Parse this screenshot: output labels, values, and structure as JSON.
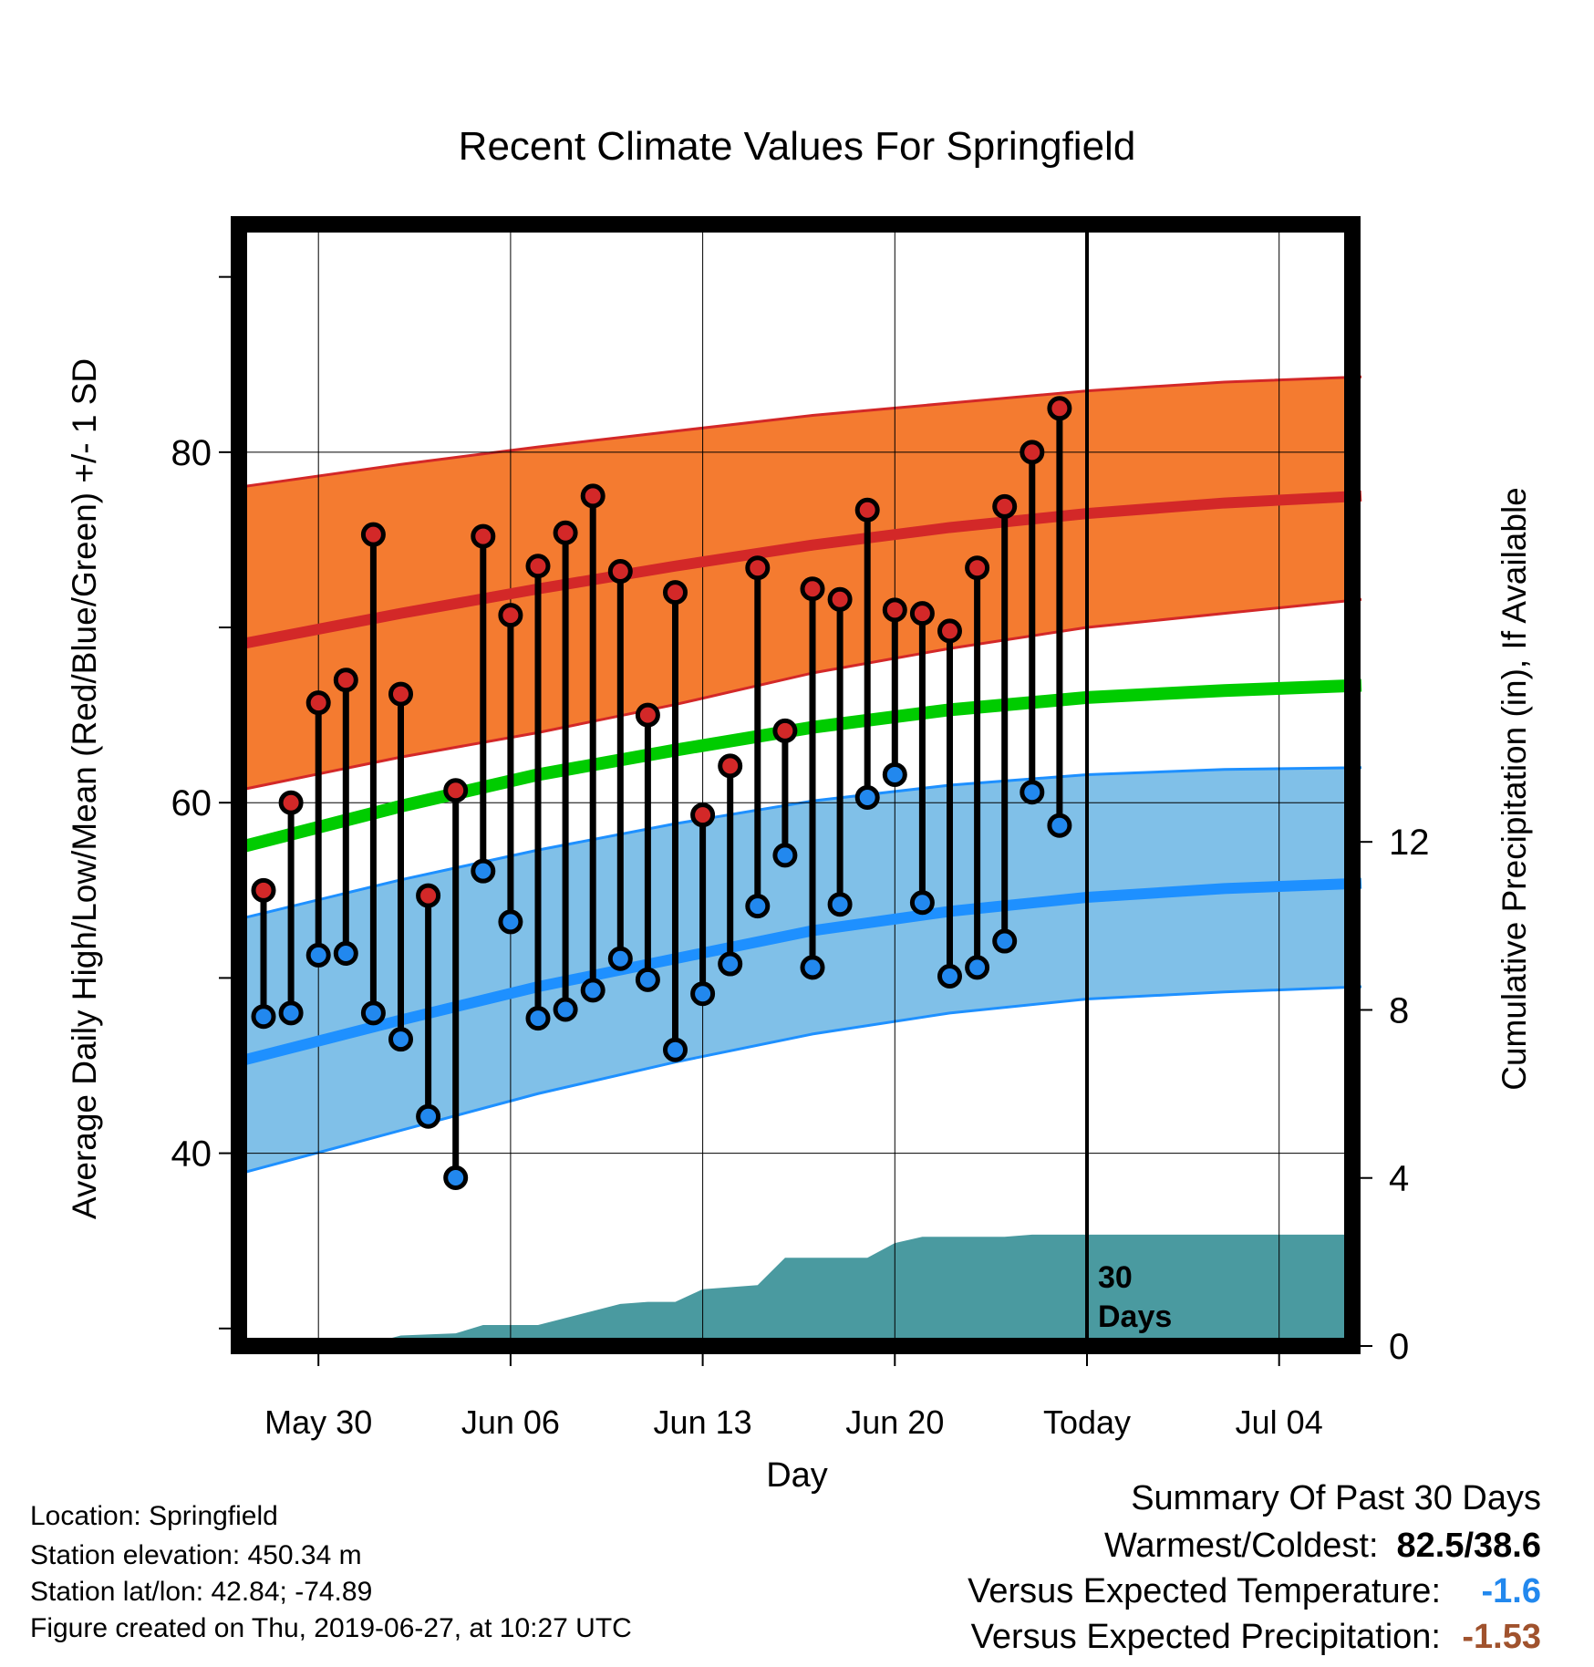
{
  "chart_data": {
    "type": "line",
    "title": "Recent Climate Values For Springfield",
    "xlabel": "Day",
    "ylabel_left": "Average Daily High/Low/Mean (Red/Blue/Green) +/- 1 SD",
    "ylabel_right": "Cumulative Precipitation (in), If Available",
    "x_ticks": [
      "May 30",
      "Jun 06",
      "Jun 13",
      "Jun 20",
      "Today",
      "Jul 04"
    ],
    "y_left_ticks": [
      "40",
      "60",
      "80"
    ],
    "y_left_range": [
      29,
      93
    ],
    "y_right_ticks": [
      "0",
      "4",
      "8",
      "12"
    ],
    "y_right_range": [
      0,
      26.7
    ],
    "today_annotation": "30 Days",
    "grid": true,
    "normals": {
      "days": [
        0,
        5,
        10,
        15,
        20,
        25,
        30,
        35,
        40
      ],
      "high_mean": [
        69.3,
        70.8,
        72.2,
        73.5,
        74.7,
        75.7,
        76.5,
        77.1,
        77.5
      ],
      "high_upper": [
        78.2,
        79.3,
        80.3,
        81.2,
        82.1,
        82.8,
        83.5,
        84.0,
        84.3
      ],
      "high_lower": [
        61.0,
        62.6,
        64.0,
        65.6,
        67.4,
        68.8,
        70.0,
        70.8,
        71.6
      ],
      "avg_mean": [
        57.8,
        59.8,
        61.6,
        63.0,
        64.3,
        65.3,
        66.0,
        66.4,
        66.7
      ],
      "low_mean": [
        45.6,
        47.6,
        49.5,
        51.1,
        52.7,
        53.8,
        54.6,
        55.1,
        55.4
      ],
      "low_upper": [
        53.7,
        55.6,
        57.3,
        58.8,
        60.1,
        61.0,
        61.6,
        61.9,
        62.0
      ],
      "low_lower": [
        39.2,
        41.3,
        43.4,
        45.2,
        46.8,
        48.0,
        48.8,
        49.2,
        49.5
      ]
    },
    "observed": {
      "days": [
        0,
        1,
        2,
        3,
        4,
        5,
        6,
        7,
        8,
        9,
        10,
        11,
        12,
        13,
        14,
        15,
        16,
        17,
        18,
        19,
        20,
        21,
        22,
        23,
        24,
        25,
        26,
        27,
        28,
        29
      ],
      "high": [
        55.0,
        60.0,
        65.7,
        67.0,
        75.3,
        66.2,
        54.7,
        60.7,
        75.2,
        70.7,
        73.5,
        75.4,
        77.5,
        73.2,
        65.0,
        72.0,
        59.3,
        62.1,
        73.4,
        64.1,
        72.2,
        71.6,
        76.7,
        71.0,
        70.8,
        69.8,
        73.4,
        76.9,
        80.0,
        82.5
      ],
      "low": [
        47.8,
        48.0,
        51.3,
        51.4,
        48.0,
        46.5,
        42.1,
        38.6,
        56.1,
        53.2,
        47.7,
        48.2,
        49.3,
        51.1,
        49.9,
        45.9,
        49.1,
        50.8,
        54.1,
        57.0,
        50.6,
        54.2,
        60.3,
        61.6,
        54.3,
        50.1,
        50.6,
        52.1,
        60.6,
        58.7
      ]
    },
    "precip_cumulative": {
      "days": [
        0,
        1,
        4,
        5,
        7,
        8,
        9,
        10,
        13,
        14,
        15,
        16,
        17,
        18,
        19,
        20,
        21,
        22,
        23,
        24,
        25,
        26,
        27,
        28,
        29,
        30,
        40
      ],
      "values": [
        0.05,
        0.08,
        0.08,
        0.25,
        0.3,
        0.5,
        0.5,
        0.5,
        1.0,
        1.05,
        1.05,
        1.35,
        1.4,
        1.45,
        2.1,
        2.1,
        2.1,
        2.1,
        2.45,
        2.6,
        2.6,
        2.6,
        2.6,
        2.65,
        2.65,
        2.65,
        2.65
      ]
    }
  },
  "info": {
    "location": "Location: Springfield",
    "elevation": "Station elevation: 450.34 m",
    "latlon": "Station lat/lon: 42.84; -74.89",
    "created": "Figure created on Thu, 2019-06-27, at 10:27 UTC"
  },
  "summary": {
    "title": "Summary Of Past 30 Days",
    "warm_cold_label": "Warmest/Coldest:",
    "warm_cold_value": "82.5/38.6",
    "temp_label": "Versus Expected Temperature:",
    "temp_value": "-1.6",
    "precip_label": "Versus Expected Precipitation:",
    "precip_value": "-1.53"
  },
  "colors": {
    "high_band": "#f47b30",
    "high_line": "#d32828",
    "low_band": "#80c0e8",
    "low_line": "#1e90ff",
    "avg_line": "#00cc00",
    "precip_fill": "#4a9aa0",
    "high_marker": "#d32828",
    "low_marker": "#2288ee",
    "temp_value": "#2288ee",
    "precip_value": "#a0522d"
  }
}
